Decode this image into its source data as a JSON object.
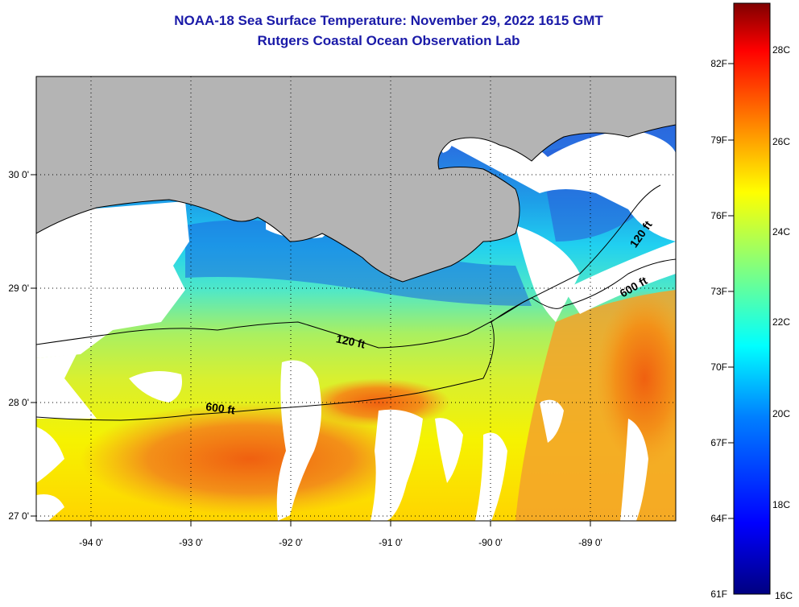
{
  "title": {
    "line1": "NOAA-18 Sea Surface Temperature:  November 29, 2022 1615 GMT",
    "line2": "Rutgers Coastal Ocean Observation Lab"
  },
  "map": {
    "x_ticks": [
      "-94 0'",
      "-93 0'",
      "-92 0'",
      "-91 0'",
      "-90 0'",
      "-89 0'"
    ],
    "y_ticks": [
      "30 0'",
      "29 0'",
      "28 0'",
      "27 0'"
    ],
    "lon_range": [
      -94.5,
      -88.3
    ],
    "lat_range": [
      26.95,
      30.85
    ],
    "contour_labels": [
      "120 ft",
      "600 ft",
      "120 ft",
      "600 ft"
    ],
    "colors": {
      "land": "#b4b4b4",
      "cloud": "#ffffff"
    }
  },
  "colorbar": {
    "fahrenheit_labels": [
      "82F",
      "79F",
      "76F",
      "73F",
      "70F",
      "67F",
      "64F",
      "61F"
    ],
    "celsius_labels": [
      "28C",
      "26C",
      "24C",
      "22C",
      "20C",
      "18C",
      "16C"
    ],
    "range_f": [
      61,
      84
    ],
    "range_c": [
      16,
      29
    ],
    "stops": [
      "#000080",
      "#0000ff",
      "#0080ff",
      "#00ffff",
      "#80ff80",
      "#ffff00",
      "#ff8000",
      "#ff0000",
      "#800000"
    ]
  }
}
